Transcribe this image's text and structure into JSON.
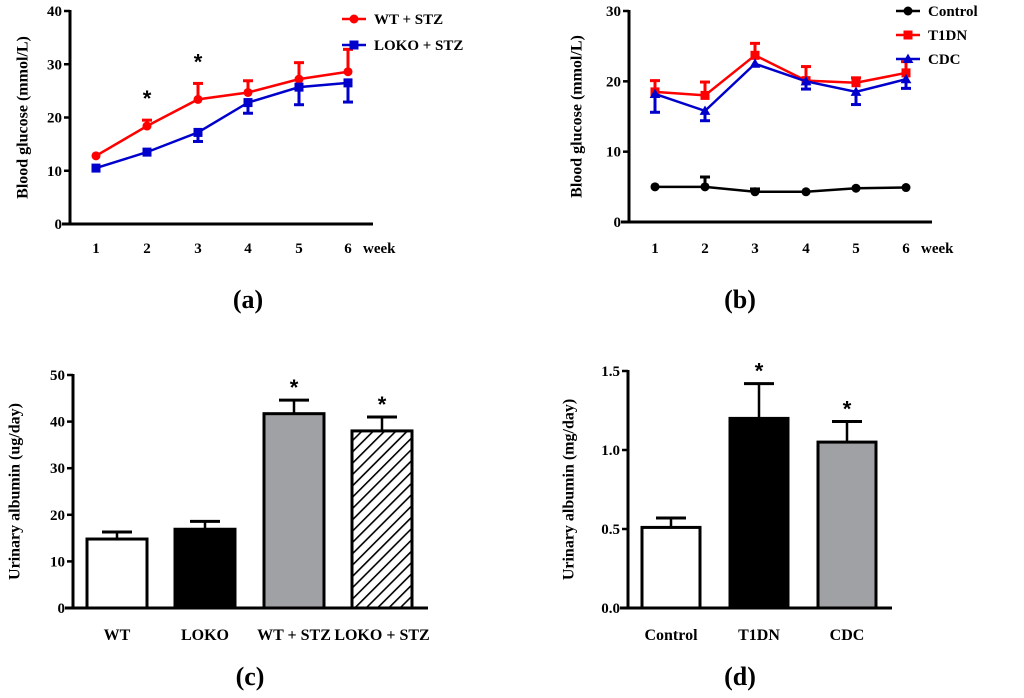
{
  "chart_data": [
    {
      "panel": "(a)",
      "type": "line",
      "title": "",
      "xlabel": "week",
      "ylabel": "Blood glucose (mmol/L)",
      "x": [
        1,
        2,
        3,
        4,
        5,
        6
      ],
      "x_tick_labels": [
        "1",
        "2",
        "3",
        "4",
        "5",
        "6"
      ],
      "ylim": [
        0,
        40
      ],
      "y_ticks": [
        0,
        10,
        20,
        30,
        40
      ],
      "grid": false,
      "legend_position": "top-right",
      "series": [
        {
          "name": "WT + STZ",
          "color": "#ff0000",
          "marker": "circle",
          "values": [
            12.8,
            18.4,
            23.4,
            24.7,
            27.2,
            28.6
          ],
          "error_upper": [
            12.8,
            19.5,
            26.4,
            26.9,
            30.3,
            32.8
          ]
        },
        {
          "name": "LOKO + STZ",
          "color": "#0000cc",
          "marker": "square",
          "values": [
            10.5,
            13.5,
            17.2,
            22.8,
            25.7,
            26.5
          ],
          "error_lower": [
            10.5,
            13.5,
            15.5,
            20.8,
            22.4,
            22.9
          ]
        }
      ],
      "annotations": [
        {
          "x": 2,
          "text": "*"
        },
        {
          "x": 3,
          "text": "*"
        }
      ]
    },
    {
      "panel": "(b)",
      "type": "line",
      "title": "",
      "xlabel": "week",
      "ylabel": "Blood glucose (mmol/L)",
      "x": [
        1,
        2,
        3,
        4,
        5,
        6
      ],
      "x_tick_labels": [
        "1",
        "2",
        "3",
        "4",
        "5",
        "6"
      ],
      "ylim": [
        0,
        30
      ],
      "y_ticks": [
        0,
        10,
        20,
        30
      ],
      "grid": false,
      "legend_position": "top-right",
      "series": [
        {
          "name": "Control",
          "color": "#000000",
          "marker": "circle",
          "values": [
            5.0,
            5.0,
            4.3,
            4.3,
            4.8,
            4.9
          ],
          "error_upper": [
            5.0,
            6.4,
            4.7,
            4.3,
            4.8,
            4.9
          ]
        },
        {
          "name": "T1DN",
          "color": "#ff0000",
          "marker": "square",
          "values": [
            18.5,
            18.0,
            23.7,
            20.1,
            19.8,
            21.2
          ],
          "error_upper": [
            20.1,
            19.9,
            25.4,
            22.1,
            20.5,
            22.8
          ]
        },
        {
          "name": "CDC",
          "color": "#0000cc",
          "marker": "triangle",
          "values": [
            18.2,
            15.8,
            22.5,
            20.0,
            18.5,
            20.3
          ],
          "error_lower": [
            15.6,
            14.4,
            22.5,
            18.9,
            16.7,
            19.0
          ]
        }
      ]
    },
    {
      "panel": "(c)",
      "type": "bar",
      "title": "",
      "xlabel": "",
      "ylabel": "Urinary albumin (ug/day)",
      "categories": [
        "WT",
        "LOKO",
        "WT + STZ",
        "LOKO + STZ"
      ],
      "values": [
        14.8,
        16.9,
        41.7,
        38.0
      ],
      "error_upper": [
        16.3,
        18.6,
        44.6,
        41.0
      ],
      "fills": [
        "white",
        "black",
        "gray",
        "hatched"
      ],
      "ylim": [
        0,
        50
      ],
      "y_ticks": [
        0,
        10,
        20,
        30,
        40,
        50
      ],
      "grid": false,
      "annotations": [
        {
          "category": "WT + STZ",
          "text": "*"
        },
        {
          "category": "LOKO + STZ",
          "text": "*"
        }
      ]
    },
    {
      "panel": "(d)",
      "type": "bar",
      "title": "",
      "xlabel": "",
      "ylabel": "Urinary albumin (mg/day)",
      "categories": [
        "Control",
        "T1DN",
        "CDC"
      ],
      "values": [
        0.51,
        1.2,
        1.05
      ],
      "error_upper": [
        0.57,
        1.42,
        1.18
      ],
      "fills": [
        "white",
        "black",
        "gray"
      ],
      "ylim": [
        0,
        1.5
      ],
      "y_ticks": [
        0.0,
        0.5,
        1.0,
        1.5
      ],
      "y_tick_labels": [
        "0.0",
        "0.5",
        "1.0",
        "1.5"
      ],
      "grid": false,
      "annotations": [
        {
          "category": "T1DN",
          "text": "*"
        },
        {
          "category": "CDC",
          "text": "*"
        }
      ]
    }
  ],
  "colors": {
    "gray_fill": "#a0a1a4",
    "axis": "#000000"
  }
}
